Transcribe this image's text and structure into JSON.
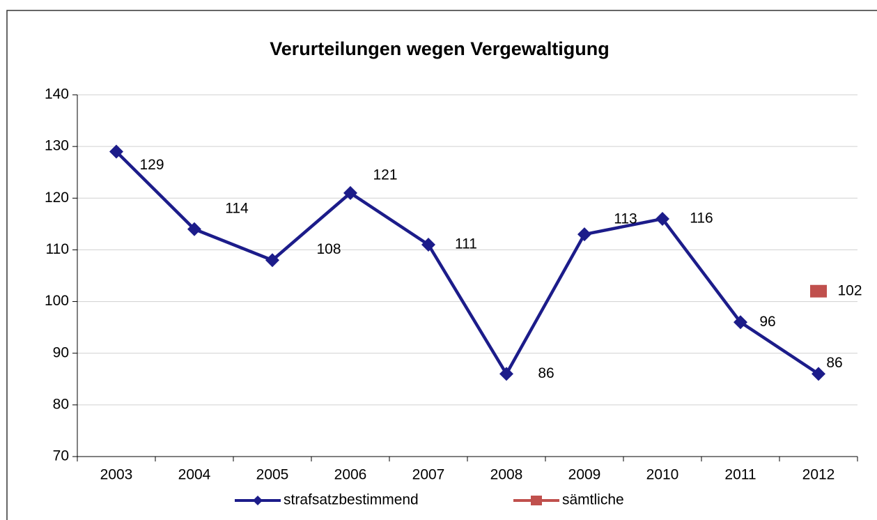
{
  "chart_data": {
    "type": "line",
    "title": "Verurteilungen  wegen Vergewaltigung",
    "categories": [
      "2003",
      "2004",
      "2005",
      "2006",
      "2007",
      "2008",
      "2009",
      "2010",
      "2011",
      "2012"
    ],
    "series": [
      {
        "name": "strafsatzbestimmend",
        "color": "#1c1c8a",
        "values": [
          129,
          114,
          108,
          121,
          111,
          86,
          113,
          116,
          96,
          86
        ]
      },
      {
        "name": "sämtliche",
        "color": "#c0504d",
        "values": [
          null,
          null,
          null,
          null,
          null,
          null,
          null,
          null,
          null,
          102
        ]
      }
    ],
    "ylim": [
      70,
      140
    ],
    "yticks": [
      70,
      80,
      90,
      100,
      110,
      120,
      130,
      140
    ],
    "grid": true,
    "legend": "bottom"
  }
}
